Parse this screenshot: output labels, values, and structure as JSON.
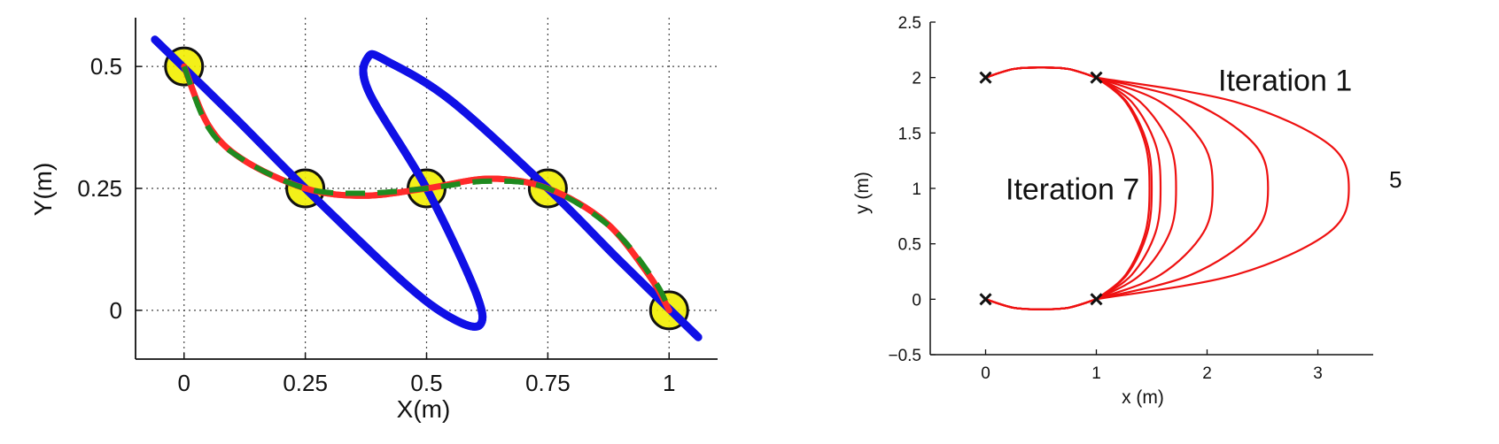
{
  "chart_data": [
    {
      "type": "line",
      "title": "",
      "xlabel": "X(m)",
      "ylabel": "Y(m)",
      "xlim": [
        -0.1,
        1.1
      ],
      "ylim": [
        -0.1,
        0.6
      ],
      "grid": true,
      "xticks": [
        0,
        0.25,
        0.5,
        0.75,
        1
      ],
      "xtick_labels": [
        "0",
        "0.25",
        "0.5",
        "0.75",
        "1"
      ],
      "yticks": [
        0,
        0.25,
        0.5
      ],
      "ytick_labels": [
        "0",
        "0.25",
        "0.5"
      ],
      "waypoints": [
        {
          "x": 0,
          "y": 0.5
        },
        {
          "x": 0.25,
          "y": 0.25
        },
        {
          "x": 0.5,
          "y": 0.25
        },
        {
          "x": 0.75,
          "y": 0.25
        },
        {
          "x": 1,
          "y": 0
        }
      ],
      "waypoint_color": "#f2ee00",
      "series": [
        {
          "color": "#1010e6",
          "style": "solid",
          "points": [
            [
              -0.06,
              0.555
            ],
            [
              0.1,
              0.4
            ],
            [
              0.25,
              0.25
            ],
            [
              0.45,
              0.06
            ],
            [
              0.55,
              -0.015
            ],
            [
              0.61,
              -0.03
            ],
            [
              0.6,
              0.04
            ],
            [
              0.5,
              0.25
            ],
            [
              0.38,
              0.45
            ],
            [
              0.38,
              0.52
            ],
            [
              0.42,
              0.51
            ],
            [
              0.55,
              0.43
            ],
            [
              0.75,
              0.25
            ],
            [
              0.9,
              0.1
            ],
            [
              1.06,
              -0.055
            ]
          ]
        },
        {
          "color": "#ff2a2a",
          "style": "solid",
          "points": [
            [
              0,
              0.5
            ],
            [
              0.05,
              0.38
            ],
            [
              0.12,
              0.31
            ],
            [
              0.25,
              0.25
            ],
            [
              0.37,
              0.235
            ],
            [
              0.5,
              0.25
            ],
            [
              0.63,
              0.27
            ],
            [
              0.75,
              0.25
            ],
            [
              0.87,
              0.18
            ],
            [
              0.96,
              0.07
            ],
            [
              1,
              0
            ]
          ]
        },
        {
          "color": "#1f8a1f",
          "style": "dashed",
          "points": [
            [
              0,
              0.5
            ],
            [
              0.05,
              0.375
            ],
            [
              0.12,
              0.31
            ],
            [
              0.25,
              0.25
            ],
            [
              0.37,
              0.24
            ],
            [
              0.5,
              0.25
            ],
            [
              0.63,
              0.265
            ],
            [
              0.75,
              0.25
            ],
            [
              0.88,
              0.17
            ],
            [
              0.97,
              0.06
            ],
            [
              1,
              0
            ]
          ]
        }
      ]
    },
    {
      "type": "line",
      "title": "",
      "xlabel": "x (m)",
      "ylabel": "y (m)",
      "xlim": [
        -0.5,
        3.5
      ],
      "ylim": [
        -0.5,
        2.5
      ],
      "grid": false,
      "xticks": [
        0,
        1,
        2,
        3
      ],
      "xtick_labels": [
        "0",
        "1",
        "2",
        "3"
      ],
      "yticks": [
        -0.5,
        0,
        0.5,
        1,
        1.5,
        2,
        2.5
      ],
      "ytick_labels": [
        "−0.5",
        "0",
        "0.5",
        "1",
        "1.5",
        "2",
        "2.5"
      ],
      "markers": [
        {
          "x": 0,
          "y": 2
        },
        {
          "x": 1,
          "y": 2
        },
        {
          "x": 0,
          "y": 0
        },
        {
          "x": 1,
          "y": 0
        }
      ],
      "curve_color": "#ee1111",
      "iteration_extents": [
        3.28,
        2.55,
        2.05,
        1.72,
        1.58,
        1.5,
        1.48
      ],
      "arc_height": 0.09,
      "annotations": [
        {
          "text": "Iteration 1",
          "x": 2.1,
          "y": 1.88
        },
        {
          "text": "Iteration 7",
          "x": 0.18,
          "y": 0.9
        }
      ],
      "stray_label": "5"
    }
  ]
}
